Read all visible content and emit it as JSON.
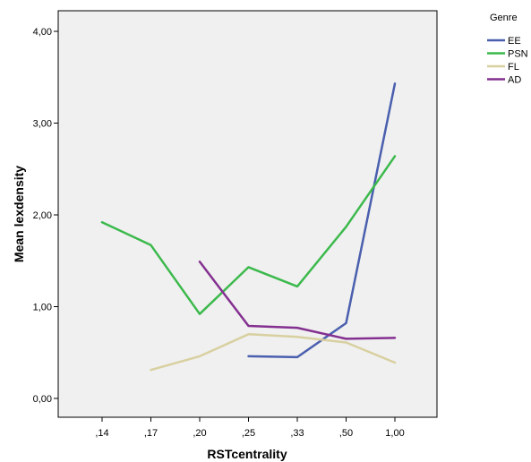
{
  "chart_data": {
    "type": "line",
    "xlabel": "RSTcentrality",
    "ylabel": "Mean lexdensity",
    "categories": [
      ",14",
      ",17",
      ",20",
      ",25",
      ",33",
      ",50",
      "1,00"
    ],
    "yticks": [
      "0,00",
      "1,00",
      "2,00",
      "3,00",
      "4,00"
    ],
    "ylim": [
      0,
      4
    ],
    "legend": {
      "title": "Genre",
      "placement": "top-right outside"
    },
    "series": [
      {
        "name": "EE",
        "color": "#4a5fae",
        "values": [
          null,
          null,
          null,
          0.46,
          0.45,
          0.82,
          3.43
        ]
      },
      {
        "name": "PSN",
        "color": "#3cb94c",
        "values": [
          1.92,
          1.67,
          0.92,
          1.43,
          1.22,
          1.87,
          2.64
        ]
      },
      {
        "name": "FL",
        "color": "#d8d0a0",
        "values": [
          null,
          0.31,
          0.46,
          0.7,
          0.67,
          0.61,
          0.39
        ]
      },
      {
        "name": "AD",
        "color": "#843090",
        "values": [
          null,
          null,
          1.49,
          0.79,
          0.77,
          0.65,
          0.66
        ]
      }
    ]
  }
}
